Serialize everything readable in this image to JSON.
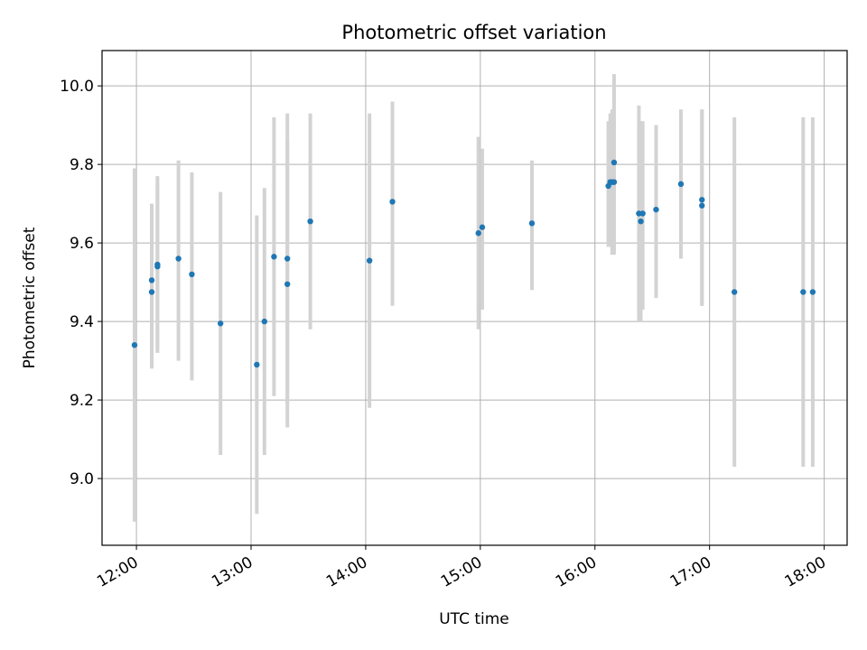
{
  "chart_data": {
    "type": "scatter",
    "title": "Photometric offset variation",
    "xlabel": "UTC time",
    "ylabel": "Photometric offset",
    "x_ticks": [
      "12:00",
      "13:00",
      "14:00",
      "15:00",
      "16:00",
      "17:00",
      "18:00"
    ],
    "y_ticks": [
      "9.0",
      "9.2",
      "9.4",
      "9.6",
      "9.8",
      "10.0"
    ],
    "xlim": [
      "11:42",
      "18:12"
    ],
    "ylim": [
      8.83,
      10.09
    ],
    "grid": true,
    "colors": {
      "point": "#1f77b4",
      "errorbar": "#d3d3d3",
      "grid": "#b0b0b0"
    },
    "series": [
      {
        "points": [
          {
            "time": "11:59",
            "y": 9.34,
            "ylow": 8.89,
            "yhigh": 9.79
          },
          {
            "time": "12:08",
            "y": 9.475,
            "ylow": 9.28,
            "yhigh": 9.67
          },
          {
            "time": "12:08",
            "y": 9.505,
            "ylow": 9.31,
            "yhigh": 9.7
          },
          {
            "time": "12:11",
            "y": 9.545,
            "ylow": 9.32,
            "yhigh": 9.77
          },
          {
            "time": "12:11",
            "y": 9.54,
            "ylow": 9.33,
            "yhigh": 9.75
          },
          {
            "time": "12:22",
            "y": 9.56,
            "ylow": 9.3,
            "yhigh": 9.81
          },
          {
            "time": "12:29",
            "y": 9.52,
            "ylow": 9.25,
            "yhigh": 9.78
          },
          {
            "time": "12:44",
            "y": 9.395,
            "ylow": 9.06,
            "yhigh": 9.73
          },
          {
            "time": "13:03",
            "y": 9.29,
            "ylow": 8.91,
            "yhigh": 9.67
          },
          {
            "time": "13:07",
            "y": 9.4,
            "ylow": 9.06,
            "yhigh": 9.74
          },
          {
            "time": "13:12",
            "y": 9.565,
            "ylow": 9.21,
            "yhigh": 9.92
          },
          {
            "time": "13:19",
            "y": 9.495,
            "ylow": 9.13,
            "yhigh": 9.86
          },
          {
            "time": "13:19",
            "y": 9.56,
            "ylow": 9.19,
            "yhigh": 9.93
          },
          {
            "time": "13:31",
            "y": 9.655,
            "ylow": 9.38,
            "yhigh": 9.93
          },
          {
            "time": "14:02",
            "y": 9.555,
            "ylow": 9.18,
            "yhigh": 9.93
          },
          {
            "time": "14:14",
            "y": 9.705,
            "ylow": 9.44,
            "yhigh": 9.96
          },
          {
            "time": "14:59",
            "y": 9.625,
            "ylow": 9.38,
            "yhigh": 9.87
          },
          {
            "time": "15:01",
            "y": 9.64,
            "ylow": 9.43,
            "yhigh": 9.84
          },
          {
            "time": "15:27",
            "y": 9.65,
            "ylow": 9.48,
            "yhigh": 9.81
          },
          {
            "time": "16:07",
            "y": 9.745,
            "ylow": 9.59,
            "yhigh": 9.91
          },
          {
            "time": "16:08",
            "y": 9.755,
            "ylow": 9.59,
            "yhigh": 9.93
          },
          {
            "time": "16:09",
            "y": 9.755,
            "ylow": 9.57,
            "yhigh": 9.94
          },
          {
            "time": "16:10",
            "y": 9.805,
            "ylow": 9.58,
            "yhigh": 10.03
          },
          {
            "time": "16:10",
            "y": 9.755,
            "ylow": 9.57,
            "yhigh": 9.93
          },
          {
            "time": "16:23",
            "y": 9.675,
            "ylow": 9.4,
            "yhigh": 9.95
          },
          {
            "time": "16:24",
            "y": 9.655,
            "ylow": 9.4,
            "yhigh": 9.91
          },
          {
            "time": "16:25",
            "y": 9.675,
            "ylow": 9.43,
            "yhigh": 9.91
          },
          {
            "time": "16:32",
            "y": 9.685,
            "ylow": 9.46,
            "yhigh": 9.9
          },
          {
            "time": "16:45",
            "y": 9.75,
            "ylow": 9.56,
            "yhigh": 9.94
          },
          {
            "time": "16:56",
            "y": 9.71,
            "ylow": 9.44,
            "yhigh": 9.94
          },
          {
            "time": "16:56",
            "y": 9.695,
            "ylow": 9.44,
            "yhigh": 9.94
          },
          {
            "time": "17:13",
            "y": 9.475,
            "ylow": 9.03,
            "yhigh": 9.92
          },
          {
            "time": "17:49",
            "y": 9.475,
            "ylow": 9.03,
            "yhigh": 9.92
          },
          {
            "time": "17:54",
            "y": 9.475,
            "ylow": 9.03,
            "yhigh": 9.92
          }
        ]
      }
    ]
  }
}
